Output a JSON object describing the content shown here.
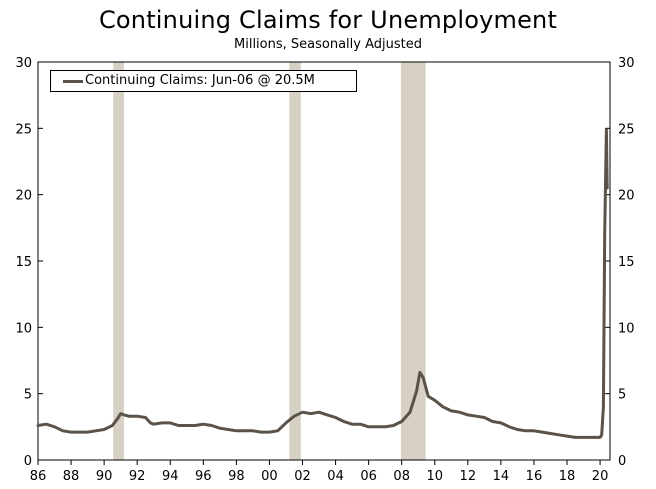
{
  "chart_data": {
    "type": "line",
    "title": "Continuing Claims for Unemployment",
    "subtitle": "Millions, Seasonally Adjusted",
    "xlabel": "",
    "ylabel": "",
    "xlim": [
      1986,
      2020.6
    ],
    "ylim": [
      0,
      30
    ],
    "y_ticks": [
      0,
      5,
      10,
      15,
      20,
      25,
      30
    ],
    "y_tick_labels": [
      "0",
      "5",
      "10",
      "15",
      "20",
      "25",
      "30"
    ],
    "y_axis_sides": "both",
    "x_ticks": [
      1986,
      1988,
      1990,
      1992,
      1994,
      1996,
      1998,
      2000,
      2002,
      2004,
      2006,
      2008,
      2010,
      2012,
      2014,
      2016,
      2018,
      2020
    ],
    "x_tick_labels": [
      "86",
      "88",
      "90",
      "92",
      "94",
      "96",
      "98",
      "00",
      "02",
      "04",
      "06",
      "08",
      "10",
      "12",
      "14",
      "16",
      "18",
      "20"
    ],
    "grid": false,
    "legend_position": "top-left",
    "recessions": [
      [
        1990.55,
        1991.2
      ],
      [
        2001.2,
        2001.9
      ],
      [
        2007.95,
        2009.45
      ]
    ],
    "series": [
      {
        "name": "Continuing Claims: Jun-06 @ 20.5M",
        "color": "#5b524a",
        "x": [
          1986.0,
          1986.5,
          1987.0,
          1987.5,
          1988.0,
          1988.5,
          1989.0,
          1989.5,
          1990.0,
          1990.5,
          1990.8,
          1991.0,
          1991.2,
          1991.5,
          1992.0,
          1992.5,
          1992.8,
          1993.0,
          1993.5,
          1994.0,
          1994.5,
          1995.0,
          1995.5,
          1996.0,
          1996.5,
          1997.0,
          1997.5,
          1998.0,
          1998.5,
          1999.0,
          1999.5,
          2000.0,
          2000.5,
          2001.0,
          2001.5,
          2002.0,
          2002.5,
          2003.0,
          2003.5,
          2004.0,
          2004.5,
          2005.0,
          2005.5,
          2006.0,
          2006.5,
          2007.0,
          2007.5,
          2008.0,
          2008.5,
          2008.9,
          2009.1,
          2009.3,
          2009.6,
          2010.0,
          2010.5,
          2011.0,
          2011.5,
          2012.0,
          2012.5,
          2013.0,
          2013.5,
          2014.0,
          2014.5,
          2015.0,
          2015.5,
          2016.0,
          2016.5,
          2017.0,
          2017.5,
          2018.0,
          2018.5,
          2019.0,
          2019.5,
          2020.0,
          2020.1,
          2020.2,
          2020.28,
          2020.38,
          2020.43
        ],
        "y": [
          2.6,
          2.7,
          2.5,
          2.2,
          2.1,
          2.1,
          2.1,
          2.2,
          2.3,
          2.6,
          3.1,
          3.5,
          3.4,
          3.3,
          3.3,
          3.2,
          2.8,
          2.7,
          2.8,
          2.8,
          2.6,
          2.6,
          2.6,
          2.7,
          2.6,
          2.4,
          2.3,
          2.2,
          2.2,
          2.2,
          2.1,
          2.1,
          2.2,
          2.8,
          3.3,
          3.6,
          3.5,
          3.6,
          3.4,
          3.2,
          2.9,
          2.7,
          2.7,
          2.5,
          2.5,
          2.5,
          2.6,
          2.9,
          3.6,
          5.2,
          6.6,
          6.2,
          4.8,
          4.5,
          4.0,
          3.7,
          3.6,
          3.4,
          3.3,
          3.2,
          2.9,
          2.8,
          2.5,
          2.3,
          2.2,
          2.2,
          2.1,
          2.0,
          1.9,
          1.8,
          1.7,
          1.7,
          1.7,
          1.7,
          1.9,
          4.0,
          17.0,
          24.9,
          20.5
        ]
      }
    ]
  }
}
